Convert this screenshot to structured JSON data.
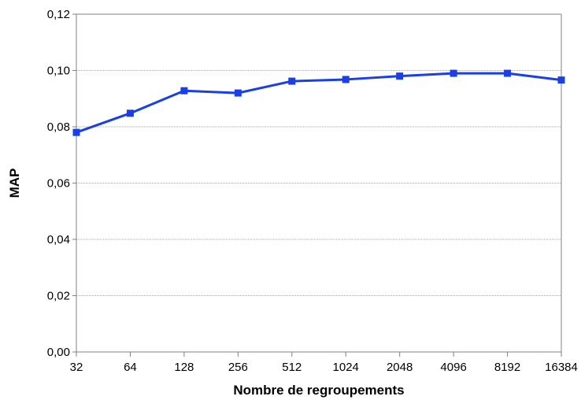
{
  "chart_data": {
    "type": "line",
    "title": "",
    "xlabel": "Nombre de regroupements",
    "ylabel": "MAP",
    "categories": [
      "32",
      "64",
      "128",
      "256",
      "512",
      "1024",
      "2048",
      "4096",
      "8192",
      "16384"
    ],
    "series": [
      {
        "values": [
          0.078,
          0.0848,
          0.0928,
          0.092,
          0.0962,
          0.0968,
          0.098,
          0.099,
          0.099,
          0.0966
        ],
        "color": "#1a3fe6"
      }
    ],
    "ylim": [
      0,
      0.12
    ],
    "yticks": [
      0.0,
      0.02,
      0.04,
      0.06,
      0.08,
      0.1,
      0.12
    ],
    "ytick_labels": [
      "0,00",
      "0,02",
      "0,04",
      "0,06",
      "0,08",
      "0,10",
      "0,12"
    ],
    "grid": "horizontal-dotted",
    "legend": "none"
  }
}
